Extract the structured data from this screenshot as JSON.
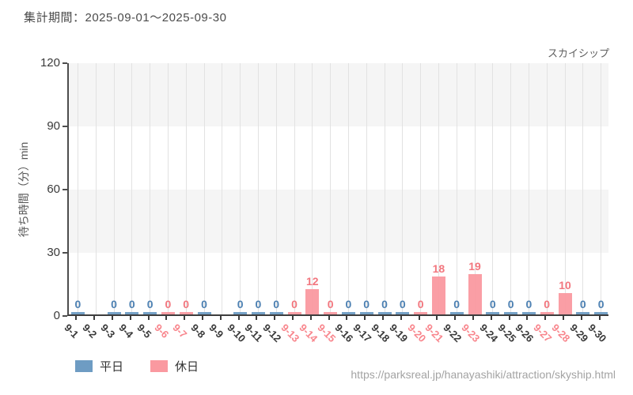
{
  "header": {
    "title": "集計期間：2025-09-01～2025-09-30",
    "attraction": "スカイシップ"
  },
  "footer": {
    "source_url": "https://parksreal.jp/hanayashiki/attraction/skyship.html"
  },
  "chart_data": {
    "type": "bar",
    "title": "スカイシップ",
    "xlabel": "",
    "ylabel": "待ち時間（分）min",
    "ylim": [
      0,
      120
    ],
    "yticks": [
      0,
      30,
      60,
      90,
      120
    ],
    "grid": "vertical-lines-with-horizontal-bands",
    "legend_position": "bottom-left",
    "legend": [
      {
        "label": "平日",
        "type": "weekday"
      },
      {
        "label": "休日",
        "type": "holiday"
      }
    ],
    "colors": {
      "weekday_bar": "#6E9CC3",
      "holiday_bar": "#FA99A0",
      "weekday_value_label": "#4C80B2",
      "holiday_value_label": "#F2767E",
      "weekday_tick_label": "#3A3A3A",
      "holiday_tick_label": "#F8868D",
      "band_gray": "#F5F5F5",
      "gridline": "#E2E2E2"
    },
    "categories": [
      "9-1",
      "9-2",
      "9-3",
      "9-4",
      "9-5",
      "9-6",
      "9-7",
      "9-8",
      "9-9",
      "9-10",
      "9-11",
      "9-12",
      "9-13",
      "9-14",
      "9-15",
      "9-16",
      "9-17",
      "9-18",
      "9-19",
      "9-20",
      "9-21",
      "9-22",
      "9-23",
      "9-24",
      "9-25",
      "9-26",
      "9-27",
      "9-28",
      "9-29",
      "9-30"
    ],
    "points": [
      {
        "date": "9-1",
        "type": "weekday",
        "value": 0
      },
      {
        "date": "9-2",
        "type": "weekday",
        "value": null
      },
      {
        "date": "9-3",
        "type": "weekday",
        "value": 0
      },
      {
        "date": "9-4",
        "type": "weekday",
        "value": 0
      },
      {
        "date": "9-5",
        "type": "weekday",
        "value": 0
      },
      {
        "date": "9-6",
        "type": "holiday",
        "value": 0
      },
      {
        "date": "9-7",
        "type": "holiday",
        "value": 0
      },
      {
        "date": "9-8",
        "type": "weekday",
        "value": 0
      },
      {
        "date": "9-9",
        "type": "weekday",
        "value": null
      },
      {
        "date": "9-10",
        "type": "weekday",
        "value": 0
      },
      {
        "date": "9-11",
        "type": "weekday",
        "value": 0
      },
      {
        "date": "9-12",
        "type": "weekday",
        "value": 0
      },
      {
        "date": "9-13",
        "type": "holiday",
        "value": 0
      },
      {
        "date": "9-14",
        "type": "holiday",
        "value": 12
      },
      {
        "date": "9-15",
        "type": "holiday",
        "value": 0
      },
      {
        "date": "9-16",
        "type": "weekday",
        "value": 0
      },
      {
        "date": "9-17",
        "type": "weekday",
        "value": 0
      },
      {
        "date": "9-18",
        "type": "weekday",
        "value": 0
      },
      {
        "date": "9-19",
        "type": "weekday",
        "value": 0
      },
      {
        "date": "9-20",
        "type": "holiday",
        "value": 0
      },
      {
        "date": "9-21",
        "type": "holiday",
        "value": 18
      },
      {
        "date": "9-22",
        "type": "weekday",
        "value": 0
      },
      {
        "date": "9-23",
        "type": "holiday",
        "value": 19
      },
      {
        "date": "9-24",
        "type": "weekday",
        "value": 0
      },
      {
        "date": "9-25",
        "type": "weekday",
        "value": 0
      },
      {
        "date": "9-26",
        "type": "weekday",
        "value": 0
      },
      {
        "date": "9-27",
        "type": "holiday",
        "value": 0
      },
      {
        "date": "9-28",
        "type": "holiday",
        "value": 10
      },
      {
        "date": "9-29",
        "type": "weekday",
        "value": 0
      },
      {
        "date": "9-30",
        "type": "weekday",
        "value": 0
      }
    ]
  }
}
